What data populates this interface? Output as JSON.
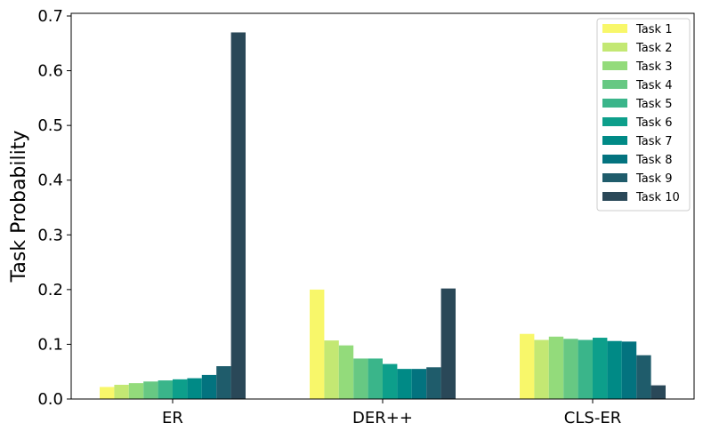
{
  "chart_data": {
    "type": "bar",
    "title": "",
    "xlabel": "",
    "ylabel": "Task Probability",
    "categories": [
      "ER",
      "DER++",
      "CLS-ER"
    ],
    "ylim": [
      0,
      0.7
    ],
    "yticks": [
      "0.0",
      "0.1",
      "0.2",
      "0.3",
      "0.4",
      "0.5",
      "0.6",
      "0.7"
    ],
    "grid": false,
    "legend_position": "top-right",
    "series": [
      {
        "name": "Task 1",
        "color": "#f8f76a",
        "values": [
          0.022,
          0.2,
          0.119
        ]
      },
      {
        "name": "Task 2",
        "color": "#c3e873",
        "values": [
          0.026,
          0.107,
          0.108
        ]
      },
      {
        "name": "Task 3",
        "color": "#93db7b",
        "values": [
          0.029,
          0.098,
          0.114
        ]
      },
      {
        "name": "Task 4",
        "color": "#67c883",
        "values": [
          0.032,
          0.074,
          0.11
        ]
      },
      {
        "name": "Task 5",
        "color": "#3ab58a",
        "values": [
          0.034,
          0.074,
          0.108
        ]
      },
      {
        "name": "Task 6",
        "color": "#0d9f8b",
        "values": [
          0.036,
          0.064,
          0.112
        ]
      },
      {
        "name": "Task 7",
        "color": "#008a86",
        "values": [
          0.038,
          0.055,
          0.106
        ]
      },
      {
        "name": "Task 8",
        "color": "#03737f",
        "values": [
          0.044,
          0.055,
          0.105
        ]
      },
      {
        "name": "Task 9",
        "color": "#1f5c6b",
        "values": [
          0.06,
          0.058,
          0.08
        ]
      },
      {
        "name": "Task 10",
        "color": "#2a4858",
        "values": [
          0.67,
          0.202,
          0.025
        ]
      }
    ]
  }
}
